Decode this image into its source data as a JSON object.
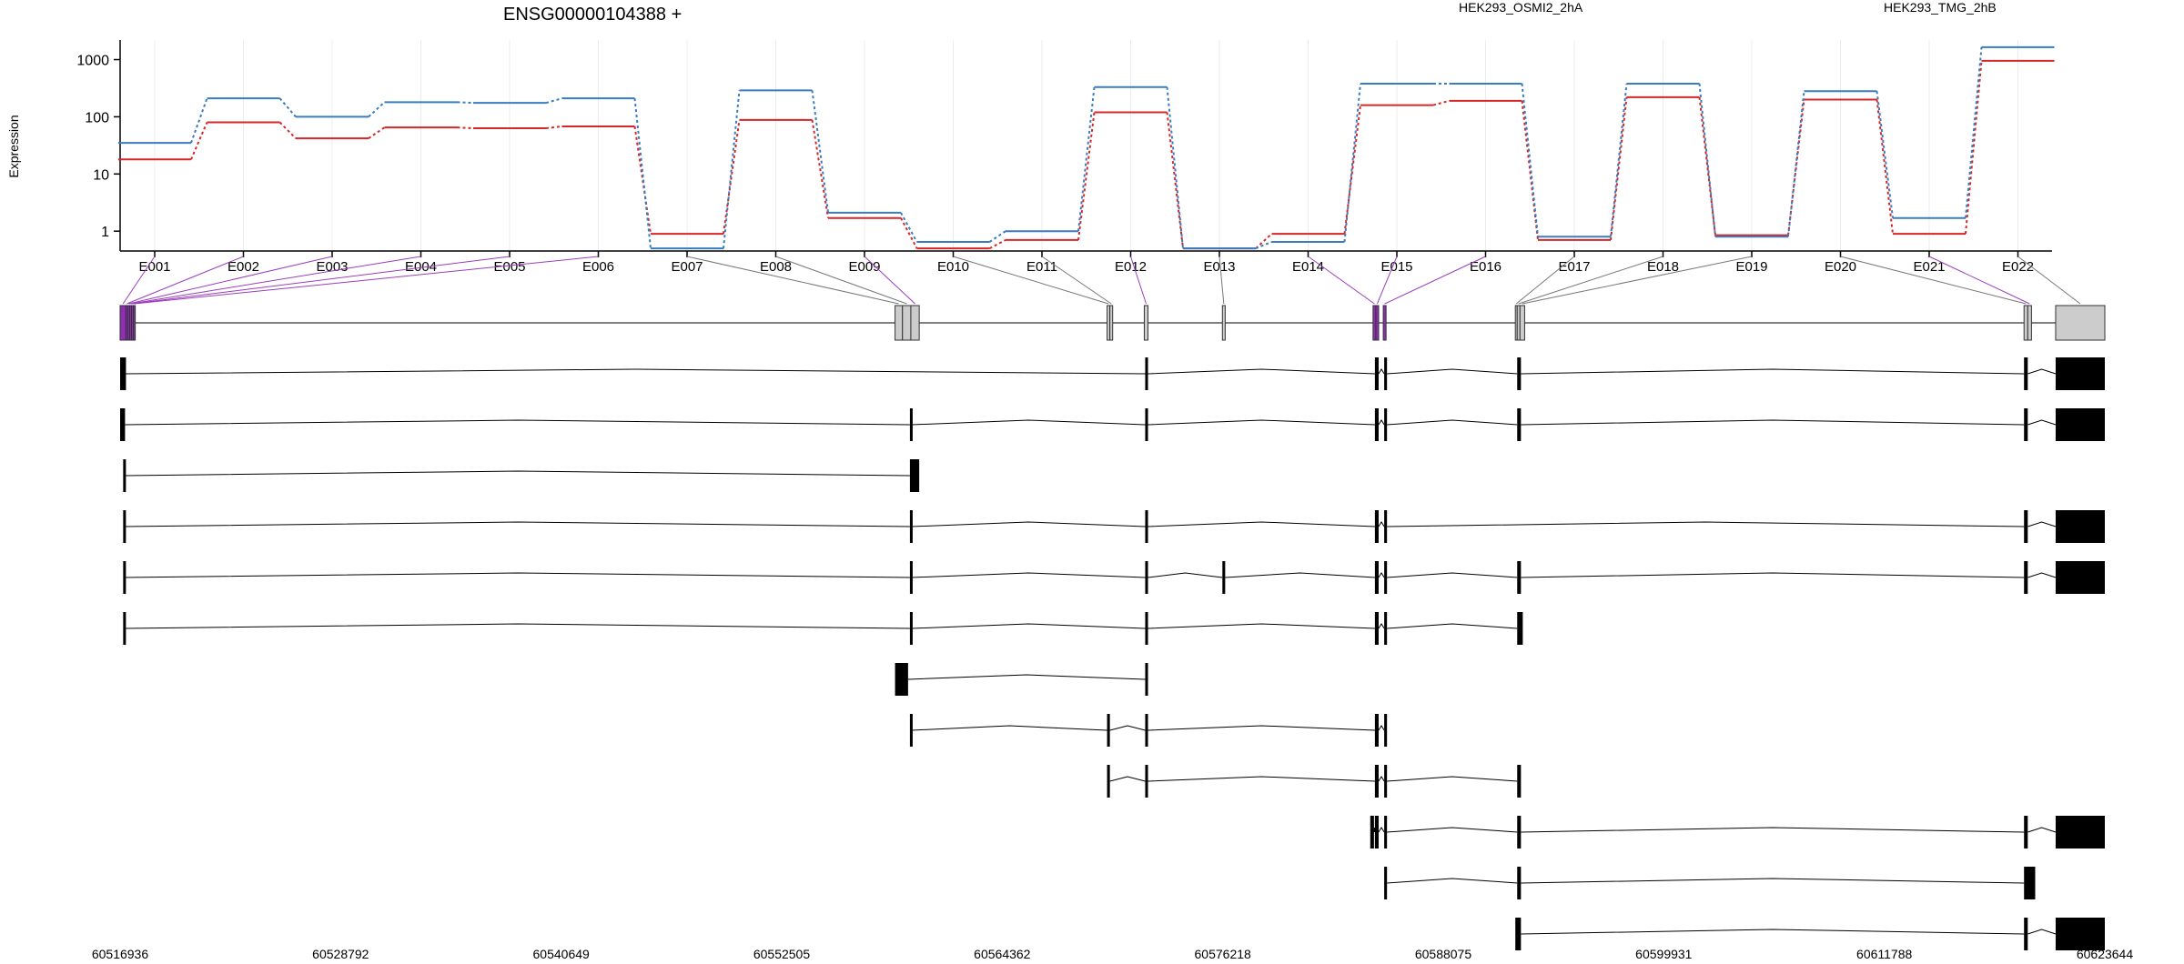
{
  "chart_data": {
    "type": "line",
    "title": "ENSG00000104388 +",
    "ylabel": "Expression",
    "yscale": "log",
    "ylim": [
      0.45,
      2200
    ],
    "yticks": [
      1,
      10,
      100,
      1000
    ],
    "ytick_labels": [
      "1",
      "10",
      "100",
      "1000"
    ],
    "categories": [
      "E001",
      "E002",
      "E003",
      "E004",
      "E005",
      "E006",
      "E007",
      "E008",
      "E009",
      "E010",
      "E011",
      "E012",
      "E013",
      "E014",
      "E015",
      "E016",
      "E017",
      "E018",
      "E019",
      "E020",
      "E021",
      "E022"
    ],
    "series": [
      {
        "name": "HEK293_OSMI2_2hA",
        "color": "#d62728",
        "values": [
          18,
          80,
          42,
          65,
          63,
          68,
          0.9,
          88,
          1.7,
          0.5,
          0.7,
          120,
          0.5,
          0.9,
          160,
          190,
          0.7,
          220,
          0.85,
          200,
          0.9,
          950
        ]
      },
      {
        "name": "HEK293_TMG_2hB",
        "color": "#3a7cc0",
        "values": [
          35,
          210,
          100,
          180,
          175,
          210,
          0.5,
          290,
          2.1,
          0.65,
          1.0,
          330,
          0.5,
          0.65,
          380,
          380,
          0.8,
          380,
          0.8,
          280,
          1.7,
          1650
        ]
      }
    ],
    "genome_axis": {
      "tick_labels": [
        "60516936",
        "60528792",
        "60540649",
        "60552505",
        "60564362",
        "60576218",
        "60588075",
        "60599931",
        "60611788",
        "60623644"
      ],
      "range": [
        60516936,
        60623644
      ]
    },
    "exon_bins": [
      [
        60516936,
        60517250
      ],
      [
        60517250,
        60517350
      ],
      [
        60517350,
        60517450
      ],
      [
        60517450,
        60517550
      ],
      [
        60517550,
        60517650
      ],
      [
        60517650,
        60517750
      ],
      [
        60558600,
        60559000
      ],
      [
        60559000,
        60559450
      ],
      [
        60559450,
        60559900
      ],
      [
        60570000,
        60570150
      ],
      [
        60570150,
        60570300
      ],
      [
        60572000,
        60572200
      ],
      [
        60576200,
        60576350
      ],
      [
        60584300,
        60584450
      ],
      [
        60584450,
        60584600
      ],
      [
        60584850,
        60585000
      ],
      [
        60591950,
        60592050
      ],
      [
        60592050,
        60592200
      ],
      [
        60592200,
        60592450
      ],
      [
        60619300,
        60619500
      ],
      [
        60619500,
        60619700
      ],
      [
        60621000,
        60623644
      ]
    ],
    "transcripts": [
      [
        [
          60516936,
          60517250
        ],
        [
          60572050,
          60572200
        ],
        [
          60584400,
          60584600
        ],
        [
          60584900,
          60585050
        ],
        [
          60592050,
          60592250
        ],
        [
          60619300,
          60619500
        ],
        [
          60621000,
          60623644
        ]
      ],
      [
        [
          60516936,
          60517200
        ],
        [
          60559400,
          60559500
        ],
        [
          60572050,
          60572200
        ],
        [
          60584400,
          60584600
        ],
        [
          60584900,
          60585050
        ],
        [
          60592050,
          60592250
        ],
        [
          60619300,
          60619500
        ],
        [
          60621000,
          60623644
        ]
      ],
      [
        [
          60517100,
          60517200
        ],
        [
          60559400,
          60559900
        ]
      ],
      [
        [
          60517100,
          60517200
        ],
        [
          60559400,
          60559500
        ],
        [
          60572050,
          60572200
        ],
        [
          60584400,
          60584600
        ],
        [
          60584900,
          60585050
        ],
        [
          60619300,
          60619500
        ],
        [
          60621000,
          60623644
        ]
      ],
      [
        [
          60517100,
          60517200
        ],
        [
          60559400,
          60559500
        ],
        [
          60572050,
          60572200
        ],
        [
          60576200,
          60576350
        ],
        [
          60584400,
          60584600
        ],
        [
          60584900,
          60585050
        ],
        [
          60592050,
          60592250
        ],
        [
          60619300,
          60619500
        ],
        [
          60621000,
          60623644
        ]
      ],
      [
        [
          60517100,
          60517200
        ],
        [
          60559400,
          60559500
        ],
        [
          60572050,
          60572200
        ],
        [
          60584400,
          60584600
        ],
        [
          60584900,
          60585050
        ],
        [
          60592050,
          60592350
        ]
      ],
      [
        [
          60558600,
          60559300
        ],
        [
          60572050,
          60572200
        ]
      ],
      [
        [
          60559400,
          60559500
        ],
        [
          60570000,
          60570150
        ],
        [
          60572050,
          60572200
        ],
        [
          60584400,
          60584600
        ],
        [
          60584900,
          60585050
        ]
      ],
      [
        [
          60570000,
          60570150
        ],
        [
          60572050,
          60572200
        ],
        [
          60584400,
          60584600
        ],
        [
          60584900,
          60585050
        ],
        [
          60592050,
          60592250
        ]
      ],
      [
        [
          60584150,
          60584350
        ],
        [
          60584400,
          60584600
        ],
        [
          60584900,
          60585050
        ],
        [
          60592050,
          60592250
        ],
        [
          60619300,
          60619500
        ],
        [
          60621000,
          60623644
        ]
      ],
      [
        [
          60584900,
          60585050
        ],
        [
          60592050,
          60592250
        ],
        [
          60619300,
          60619900
        ]
      ],
      [
        [
          60591950,
          60592250
        ],
        [
          60619300,
          60619500
        ],
        [
          60621000,
          60623644
        ]
      ]
    ],
    "grid": true,
    "legend_position": "top-right"
  }
}
